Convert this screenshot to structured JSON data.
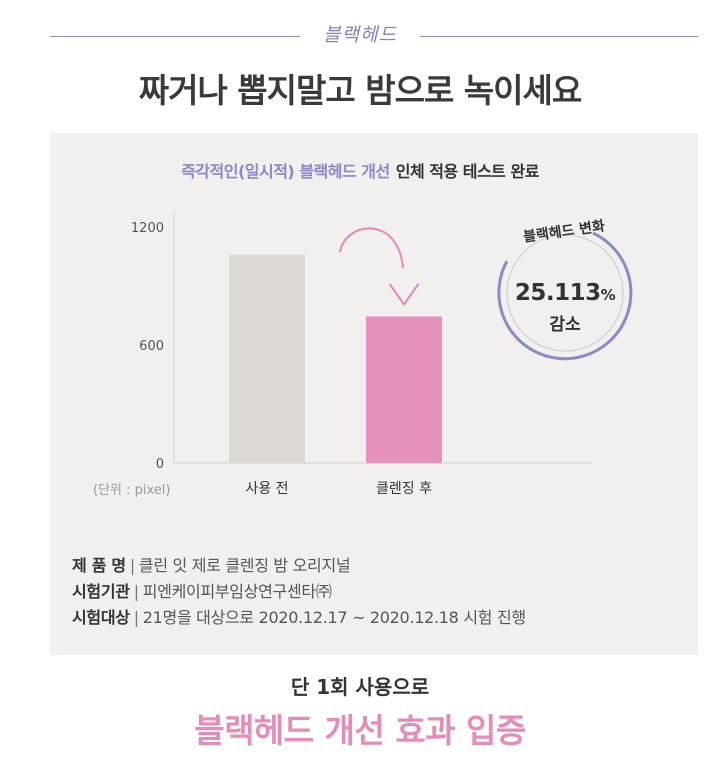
{
  "header": {
    "tag": "블랙헤드",
    "headline": "짜거나 뽑지말고 밤으로 녹이세요"
  },
  "panel": {
    "subtitle_accent": "즉각적인(일시적) 블랙헤드 개선",
    "subtitle_rest": "인체 적용 테스트 완료",
    "unit_label": "(단위 : pixel)"
  },
  "chart_data": {
    "type": "bar",
    "categories": [
      "사용 전",
      "클렌징 후"
    ],
    "values": [
      1060,
      745
    ],
    "ylim": [
      0,
      1200
    ],
    "yticks": [
      "0",
      "600",
      "1200"
    ],
    "colors": [
      "#dcd9d4",
      "#e791bd"
    ],
    "grid": false,
    "annotation": "arrow-down"
  },
  "badge": {
    "label": "블랙헤드 변화",
    "value": "25.113",
    "percent_sign": "%",
    "change": "감소",
    "ring_color": "#8b89c6"
  },
  "info": [
    {
      "key": "제 품 명",
      "value": "클린 잇 제로 클렌징 밤 오리지널"
    },
    {
      "key": "시험기관",
      "value": "피엔케이피부임상연구센타㈜"
    },
    {
      "key": "시험대상",
      "value": "21명을 대상으로 2020.12.17 ~ 2020.12.18 시험 진행"
    }
  ],
  "footer": {
    "line1": "단 1회 사용으로",
    "line2": "블랙헤드 개선 효과 입증"
  }
}
